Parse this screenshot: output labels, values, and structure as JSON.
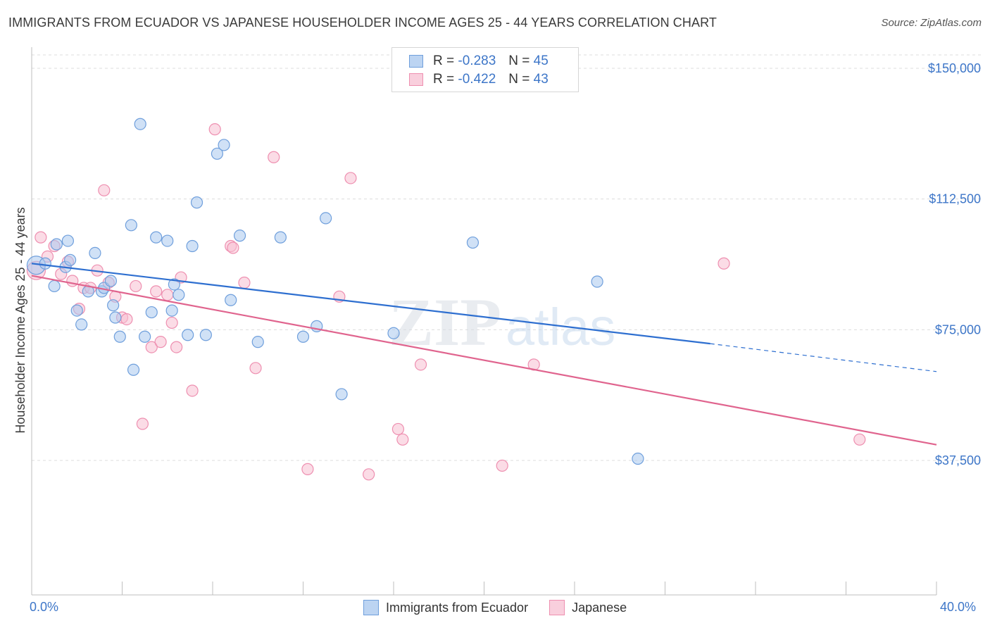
{
  "title": "IMMIGRANTS FROM ECUADOR VS JAPANESE HOUSEHOLDER INCOME AGES 25 - 44 YEARS CORRELATION CHART",
  "source": "Source: ZipAtlas.com",
  "watermark": {
    "zip": "ZIP",
    "atlas": "atlas"
  },
  "legend": {
    "rows": [
      {
        "r_label": "R =",
        "r_value": "-0.283",
        "n_label": "N =",
        "n_value": "45"
      },
      {
        "r_label": "R =",
        "r_value": "-0.422",
        "n_label": "N =",
        "n_value": "43"
      }
    ]
  },
  "colors": {
    "ecuador_fill": "#a9c8ef",
    "ecuador_stroke": "#6f9fdc",
    "ecuador_line": "#2e6fd0",
    "japanese_fill": "#f7c0d2",
    "japanese_stroke": "#ee8fb0",
    "japanese_line": "#e0648e",
    "grid": "#dcdcdc",
    "axis_text": "#3d76c8"
  },
  "chart_data": {
    "type": "scatter",
    "title": "IMMIGRANTS FROM ECUADOR VS JAPANESE HOUSEHOLDER INCOME AGES 25 - 44 YEARS CORRELATION CHART",
    "xlabel": "",
    "ylabel": "Householder Income Ages 25 - 44 years",
    "xlim": [
      0,
      40
    ],
    "ylim": [
      0,
      155000
    ],
    "x_tick_labels": [
      "0.0%",
      "40.0%"
    ],
    "y_ticks": [
      37500,
      75000,
      112500,
      150000
    ],
    "y_tick_labels": [
      "$37,500",
      "$75,000",
      "$112,500",
      "$150,000"
    ],
    "grid": true,
    "legend_position": "bottom-center",
    "series": [
      {
        "name": "Immigrants from Ecuador",
        "trend": {
          "x0": 0.0,
          "y0": 94000,
          "x1": 30.0,
          "y1": 71000,
          "dashed_to": 40.0,
          "dashed_y": 63000
        },
        "points": [
          [
            0.2,
            93500
          ],
          [
            0.6,
            94000
          ],
          [
            1.0,
            87500
          ],
          [
            1.1,
            99500
          ],
          [
            1.5,
            93000
          ],
          [
            1.6,
            100500
          ],
          [
            1.7,
            95000
          ],
          [
            2.0,
            80500
          ],
          [
            2.2,
            76500
          ],
          [
            2.5,
            86000
          ],
          [
            2.8,
            97000
          ],
          [
            3.1,
            86000
          ],
          [
            3.2,
            87000
          ],
          [
            3.5,
            89000
          ],
          [
            3.6,
            82000
          ],
          [
            3.7,
            78500
          ],
          [
            3.9,
            73000
          ],
          [
            4.4,
            105000
          ],
          [
            4.5,
            63500
          ],
          [
            4.8,
            134000
          ],
          [
            5.0,
            73000
          ],
          [
            5.3,
            80000
          ],
          [
            5.5,
            101500
          ],
          [
            6.0,
            100500
          ],
          [
            6.2,
            80500
          ],
          [
            6.3,
            88000
          ],
          [
            6.5,
            85000
          ],
          [
            6.9,
            73500
          ],
          [
            7.1,
            99000
          ],
          [
            7.3,
            111500
          ],
          [
            7.7,
            73500
          ],
          [
            8.2,
            125500
          ],
          [
            8.5,
            128000
          ],
          [
            8.8,
            83500
          ],
          [
            9.2,
            102000
          ],
          [
            10.0,
            71500
          ],
          [
            11.0,
            101500
          ],
          [
            12.0,
            73000
          ],
          [
            12.6,
            76000
          ],
          [
            13.0,
            107000
          ],
          [
            13.7,
            56500
          ],
          [
            16.0,
            74000
          ],
          [
            19.5,
            100000
          ],
          [
            25.0,
            88800
          ],
          [
            26.8,
            38000
          ]
        ]
      },
      {
        "name": "Japanese",
        "trend": {
          "x0": 0.0,
          "y0": 90500,
          "x1": 40.0,
          "y1": 42000
        },
        "points": [
          [
            0.2,
            92000
          ],
          [
            0.4,
            101500
          ],
          [
            0.7,
            96000
          ],
          [
            1.0,
            99000
          ],
          [
            1.3,
            91000
          ],
          [
            1.6,
            94500
          ],
          [
            1.8,
            89000
          ],
          [
            2.1,
            81000
          ],
          [
            2.3,
            87000
          ],
          [
            2.6,
            87000
          ],
          [
            2.9,
            92000
          ],
          [
            3.2,
            115000
          ],
          [
            3.4,
            88500
          ],
          [
            3.7,
            84500
          ],
          [
            4.0,
            78500
          ],
          [
            4.2,
            78000
          ],
          [
            4.6,
            87500
          ],
          [
            4.9,
            48000
          ],
          [
            5.3,
            70000
          ],
          [
            5.5,
            86000
          ],
          [
            5.7,
            71500
          ],
          [
            6.0,
            85000
          ],
          [
            6.2,
            77000
          ],
          [
            6.4,
            70000
          ],
          [
            6.6,
            90000
          ],
          [
            7.1,
            57500
          ],
          [
            8.1,
            132500
          ],
          [
            8.8,
            99000
          ],
          [
            8.9,
            98500
          ],
          [
            9.4,
            88500
          ],
          [
            9.9,
            64000
          ],
          [
            10.7,
            124500
          ],
          [
            12.2,
            35000
          ],
          [
            13.6,
            84500
          ],
          [
            14.1,
            118500
          ],
          [
            14.9,
            33500
          ],
          [
            16.2,
            46500
          ],
          [
            16.4,
            43500
          ],
          [
            17.2,
            65000
          ],
          [
            20.8,
            36000
          ],
          [
            22.2,
            65000
          ],
          [
            30.6,
            94000
          ],
          [
            36.6,
            43500
          ]
        ]
      }
    ]
  }
}
